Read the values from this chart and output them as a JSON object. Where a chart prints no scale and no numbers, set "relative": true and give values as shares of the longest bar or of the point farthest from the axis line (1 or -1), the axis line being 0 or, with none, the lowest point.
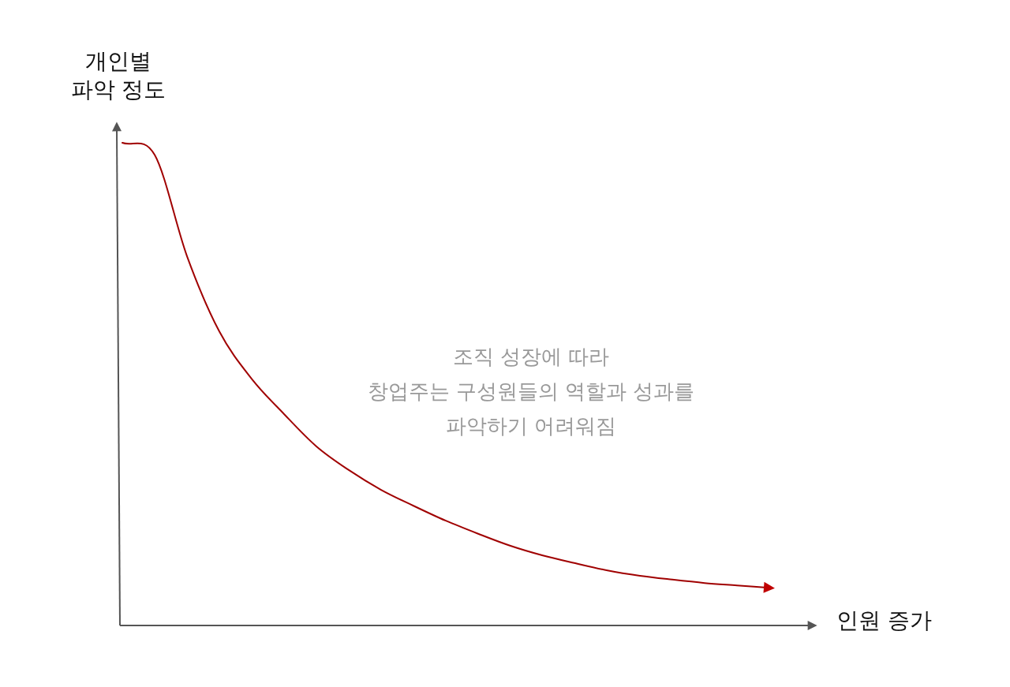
{
  "chart_data": {
    "type": "line",
    "relative": true,
    "xlabel": "인원 증가",
    "ylabel": "개인별 파악 정도",
    "annotations": [
      "조직 성장에 따라",
      "창업주는 구성원들의 역할과 성과를",
      "파악하기 어려워짐"
    ],
    "categories": [
      null,
      null,
      null,
      null,
      null,
      null,
      null,
      null,
      null,
      null,
      null,
      null,
      null,
      null,
      null,
      null,
      null,
      null,
      null,
      null,
      null
    ],
    "series": [
      {
        "color": "#a00000",
        "values": [
          1,
          0.975,
          0.765,
          0.609,
          0.511,
          0.438,
          0.371,
          0.322,
          0.281,
          0.248,
          0.217,
          0.19,
          0.165,
          0.145,
          0.129,
          0.114,
          0.103,
          0.095,
          0.088,
          0.083,
          0.078
        ]
      }
    ]
  }
}
